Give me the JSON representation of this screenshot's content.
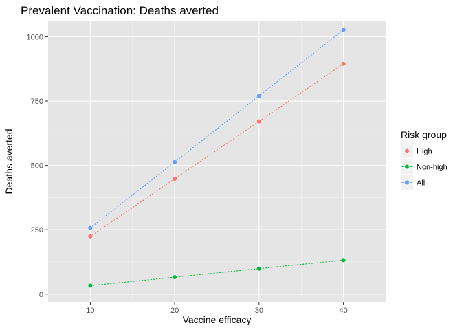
{
  "chart_data": {
    "type": "line",
    "title": "Prevalent Vaccination: Deaths averted",
    "xlabel": "Vaccine efficacy",
    "ylabel": "Deaths averted",
    "x": [
      10,
      20,
      30,
      40
    ],
    "xlim": [
      5,
      45
    ],
    "ylim": [
      -30,
      1060
    ],
    "x_ticks": [
      10,
      20,
      30,
      40
    ],
    "y_ticks": [
      0,
      250,
      500,
      750,
      1000
    ],
    "grid": true,
    "legend": {
      "title": "Risk group",
      "position": "right"
    },
    "series": [
      {
        "name": "High",
        "color": "#F8766D",
        "values": [
          224,
          448,
          671,
          895
        ]
      },
      {
        "name": "Non-high",
        "color": "#00BA38",
        "values": [
          33,
          66,
          99,
          132
        ]
      },
      {
        "name": "All",
        "color": "#619CFF",
        "values": [
          257,
          513,
          770,
          1027
        ]
      }
    ]
  }
}
